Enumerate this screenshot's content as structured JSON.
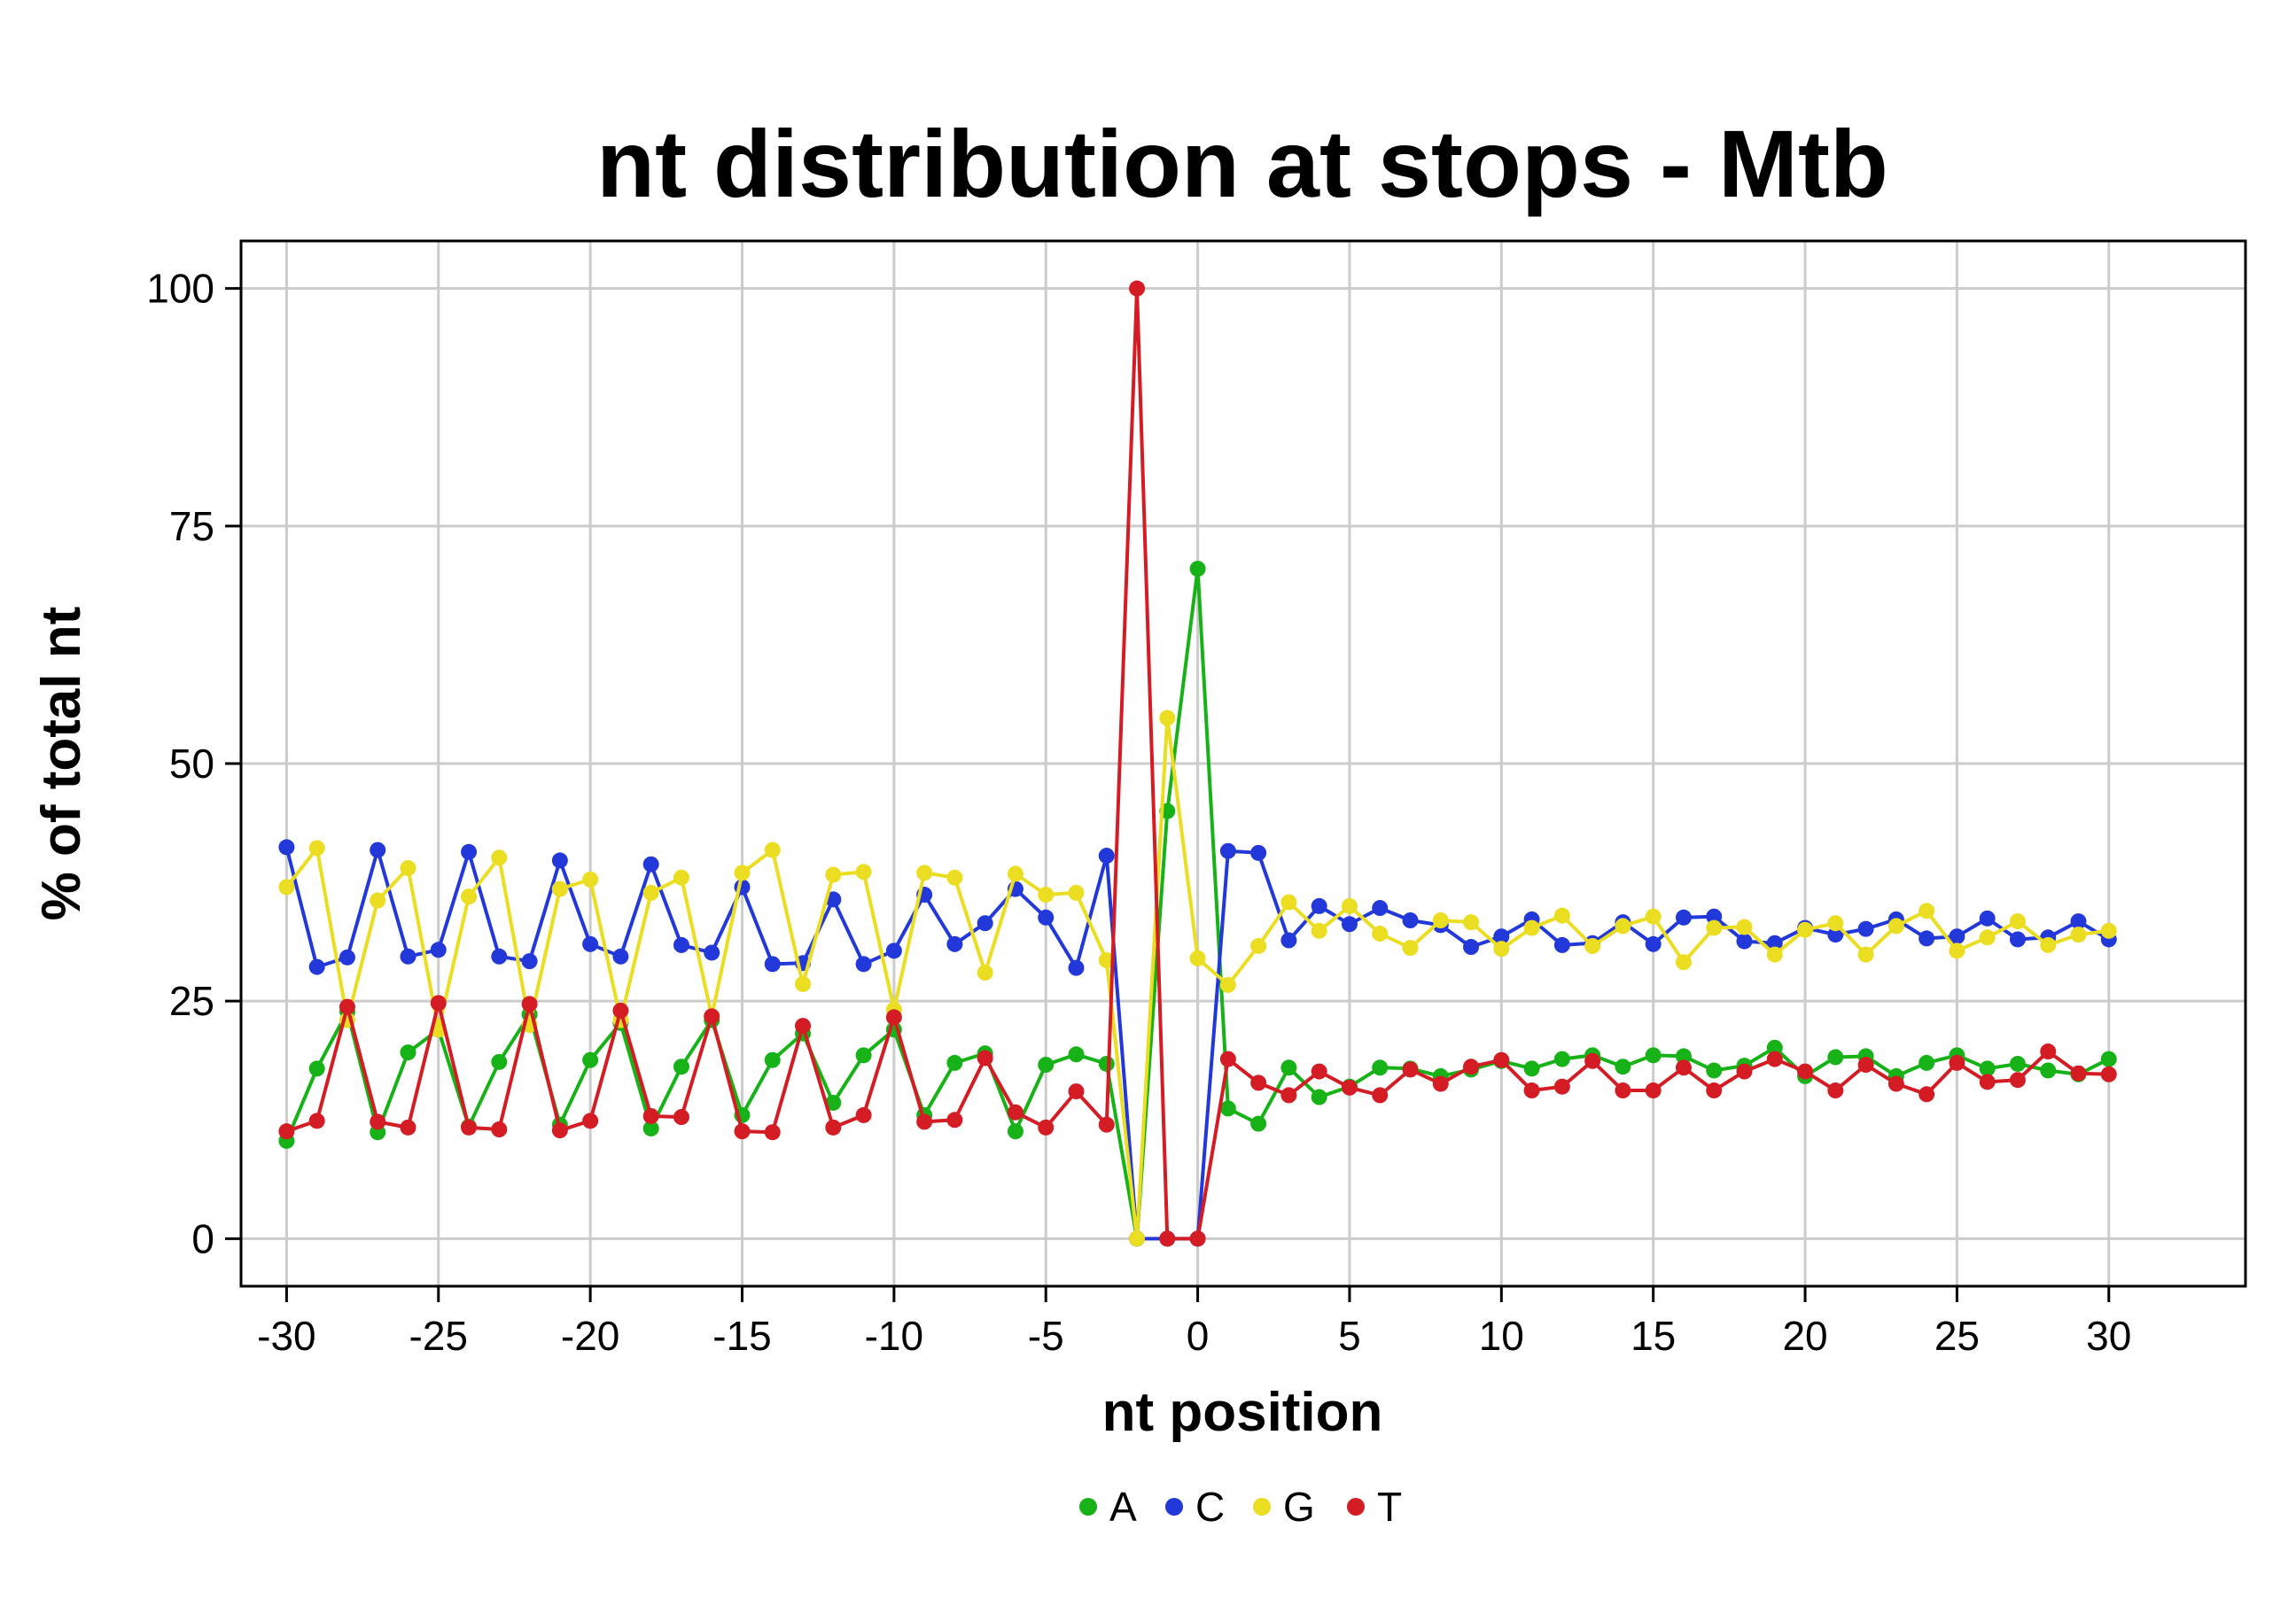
{
  "chart_data": {
    "type": "line",
    "title": "nt distribution at stops - Mtb",
    "xlabel": "nt position",
    "ylabel": "% of total nt",
    "xlim": [
      -31.5,
      34.5
    ],
    "ylim": [
      -5,
      105
    ],
    "xticks": [
      -30,
      -25,
      -20,
      -15,
      -10,
      -5,
      0,
      5,
      10,
      15,
      20,
      25,
      30
    ],
    "xtick_labels": [
      "-30",
      "-25",
      "-20",
      "-15",
      "-10",
      "-5",
      "0",
      "5",
      "10",
      "15",
      "20",
      "25",
      "30"
    ],
    "yticks": [
      0,
      25,
      50,
      75,
      100
    ],
    "ytick_labels": [
      "0",
      "25",
      "50",
      "75",
      "100"
    ],
    "grid": true,
    "legend_position": "bottom",
    "x": [
      -30,
      -29,
      -28,
      -27,
      -26,
      -25,
      -24,
      -23,
      -22,
      -21,
      -20,
      -19,
      -18,
      -17,
      -16,
      -15,
      -14,
      -13,
      -12,
      -11,
      -10,
      -9,
      -8,
      -7,
      -6,
      -5,
      -4,
      -3,
      -2,
      -1,
      0,
      1,
      2,
      3,
      4,
      5,
      6,
      7,
      8,
      9,
      10,
      11,
      12,
      13,
      14,
      15,
      16,
      17,
      18,
      19,
      20,
      21,
      22,
      23,
      24,
      25,
      26,
      27,
      28,
      29,
      30
    ],
    "series": [
      {
        "name": "A",
        "color": "#17b217",
        "values": [
          10.3,
          17.9,
          23.9,
          11.2,
          19.6,
          22.0,
          11.8,
          18.6,
          23.6,
          12.0,
          18.8,
          22.7,
          11.6,
          18.1,
          23.0,
          13.0,
          18.8,
          21.6,
          14.3,
          19.3,
          22.0,
          13.0,
          18.5,
          19.5,
          11.3,
          18.3,
          19.4,
          18.4,
          0,
          45.0,
          70.5,
          13.7,
          12.1,
          18.0,
          14.9,
          16.0,
          18.0,
          17.9,
          17.1,
          17.8,
          18.7,
          17.9,
          18.9,
          19.3,
          18.1,
          19.3,
          19.2,
          17.7,
          18.2,
          20.1,
          17.1,
          19.1,
          19.2,
          17.1,
          18.5,
          19.3,
          17.9,
          18.4,
          17.7,
          17.3,
          18.9
        ]
      },
      {
        "name": "C",
        "color": "#2238d8",
        "values": [
          41.2,
          28.6,
          29.6,
          40.9,
          29.7,
          30.4,
          40.7,
          29.7,
          29.2,
          39.8,
          31.0,
          29.7,
          39.4,
          30.9,
          30.1,
          37.0,
          28.9,
          29.0,
          35.7,
          28.9,
          30.3,
          36.2,
          31.0,
          33.2,
          36.8,
          33.8,
          28.5,
          40.3,
          0,
          0,
          0,
          40.8,
          40.6,
          31.4,
          35.0,
          33.1,
          34.8,
          33.5,
          33.0,
          30.7,
          31.8,
          33.6,
          30.9,
          31.1,
          33.3,
          31.0,
          33.8,
          33.9,
          31.3,
          31.1,
          32.7,
          32.0,
          32.6,
          33.6,
          31.6,
          31.8,
          33.7,
          31.5,
          31.7,
          33.4,
          31.5
        ]
      },
      {
        "name": "G",
        "color": "#eadd22",
        "values": [
          37.0,
          41.1,
          23.0,
          35.6,
          39.0,
          22.0,
          36.0,
          40.1,
          22.5,
          36.8,
          37.8,
          23.0,
          36.4,
          38.0,
          23.4,
          38.5,
          40.9,
          26.8,
          38.3,
          38.6,
          24.1,
          38.5,
          38.0,
          28.0,
          38.4,
          36.2,
          36.4,
          29.3,
          0,
          54.8,
          29.5,
          26.7,
          30.8,
          35.4,
          32.4,
          35.0,
          32.1,
          30.6,
          33.5,
          33.3,
          30.5,
          32.7,
          34.0,
          30.8,
          32.9,
          33.9,
          29.1,
          32.7,
          32.8,
          29.9,
          32.5,
          33.2,
          29.9,
          32.9,
          34.5,
          30.3,
          31.7,
          33.4,
          30.9,
          32.0,
          32.4
        ]
      },
      {
        "name": "T",
        "color": "#d41c24",
        "values": [
          11.3,
          12.4,
          24.4,
          12.3,
          11.7,
          24.8,
          11.7,
          11.5,
          24.7,
          11.4,
          12.4,
          24.0,
          12.9,
          12.8,
          23.4,
          11.3,
          11.2,
          22.4,
          11.7,
          13.0,
          23.3,
          12.3,
          12.5,
          19.0,
          13.3,
          11.7,
          15.5,
          12.0,
          100,
          0,
          0,
          18.9,
          16.4,
          15.1,
          17.6,
          15.9,
          15.1,
          17.8,
          16.3,
          18.1,
          18.8,
          15.6,
          16.0,
          18.7,
          15.6,
          15.6,
          18.0,
          15.6,
          17.6,
          18.9,
          17.6,
          15.6,
          18.3,
          16.3,
          15.2,
          18.5,
          16.5,
          16.7,
          19.7,
          17.4,
          17.3
        ]
      }
    ]
  }
}
